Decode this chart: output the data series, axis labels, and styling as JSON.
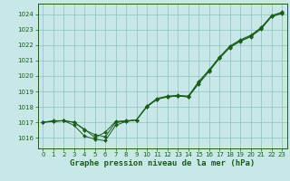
{
  "bg_color": "#c8e8e8",
  "grid_color": "#90c0c0",
  "line_color": "#1a5c1a",
  "xlabel": "Graphe pression niveau de la mer (hPa)",
  "xlim_min": -0.5,
  "xlim_max": 23.5,
  "ylim_min": 1015.3,
  "ylim_max": 1024.7,
  "yticks": [
    1016,
    1017,
    1018,
    1019,
    1020,
    1021,
    1022,
    1023,
    1024
  ],
  "xticks": [
    0,
    1,
    2,
    3,
    4,
    5,
    6,
    7,
    8,
    9,
    10,
    11,
    12,
    13,
    14,
    15,
    16,
    17,
    18,
    19,
    20,
    21,
    22,
    23
  ],
  "series": [
    [
      1017.0,
      1017.1,
      1017.1,
      1016.8,
      1016.1,
      1015.9,
      1015.8,
      1016.8,
      1017.05,
      1017.15,
      1018.0,
      1018.5,
      1018.65,
      1018.7,
      1018.65,
      1019.5,
      1020.3,
      1021.15,
      1021.85,
      1022.25,
      1022.55,
      1023.05,
      1023.85,
      1024.05
    ],
    [
      1017.0,
      1017.05,
      1017.1,
      1017.0,
      1016.5,
      1016.2,
      1016.05,
      1017.0,
      1017.05,
      1017.15,
      1018.0,
      1018.5,
      1018.65,
      1018.7,
      1018.65,
      1019.6,
      1020.35,
      1021.2,
      1021.9,
      1022.3,
      1022.6,
      1023.1,
      1023.9,
      1024.1
    ],
    [
      1017.0,
      1017.05,
      1017.1,
      1017.0,
      1016.55,
      1016.0,
      1016.35,
      1017.05,
      1017.1,
      1017.15,
      1018.05,
      1018.55,
      1018.7,
      1018.75,
      1018.7,
      1019.65,
      1020.4,
      1021.25,
      1021.95,
      1022.35,
      1022.65,
      1023.15,
      1023.92,
      1024.15
    ]
  ],
  "tick_fontsize": 5.0,
  "label_fontsize": 6.5
}
